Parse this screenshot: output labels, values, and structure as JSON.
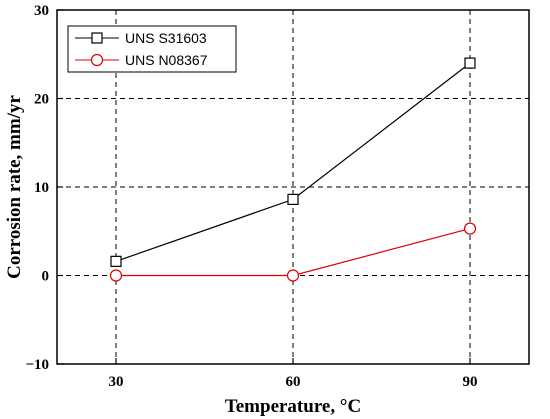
{
  "chart_data": {
    "type": "line",
    "xlabel": "Temperature, °C",
    "ylabel": "Corrosion rate, mm/yr",
    "x": [
      30,
      60,
      90
    ],
    "xlim": [
      20,
      100
    ],
    "ylim": [
      -10,
      30
    ],
    "xticks": [
      30,
      60,
      90
    ],
    "yticks": [
      -10,
      0,
      10,
      20,
      30
    ],
    "grid": true,
    "grid_style": "dashed",
    "legend_position": "top-left",
    "series": [
      {
        "name": "UNS S31603",
        "values": [
          1.6,
          8.6,
          24.0
        ],
        "color": "#000000",
        "marker": "square"
      },
      {
        "name": "UNS N08367",
        "values": [
          0.0,
          0.0,
          5.3
        ],
        "color": "#e00000",
        "marker": "circle"
      }
    ]
  }
}
